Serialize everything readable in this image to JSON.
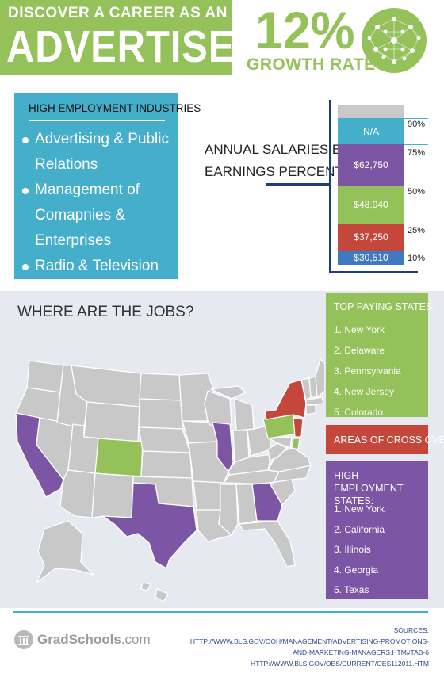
{
  "header": {
    "title_small": "DISCOVER A CAREER AS AN",
    "title_big": "ADVERTISER",
    "growth_value": "12%",
    "growth_label": "GROWTH RATE",
    "accent_color": "#94c159"
  },
  "industries": {
    "title": "HIGH EMPLOYMENT INDUSTRIES",
    "items": [
      "Advertising & Public Relations",
      "Management of Comapnies & Enterprises",
      "Radio & Television Broadcasting"
    ],
    "color": "#45aecb"
  },
  "salary": {
    "title_line1": "ANNUAL SALARIES BY",
    "title_line2": "EARNINGS PERCENTILE",
    "bars": [
      {
        "label": "N/A",
        "percentile": "90%",
        "color": "#45aecb"
      },
      {
        "label": "$62,750",
        "percentile": "75%",
        "color": "#7c56a4"
      },
      {
        "label": "$48,040",
        "percentile": "50%",
        "color": "#94c159"
      },
      {
        "label": "$37,250",
        "percentile": "25%",
        "color": "#c5463b"
      },
      {
        "label": "$30,510",
        "percentile": "10%",
        "color": "#3f7ac0"
      }
    ]
  },
  "jobs": {
    "title": "WHERE ARE THE JOBS?",
    "top_paying": {
      "title": "TOP PAYING STATES:",
      "states": [
        "1. New York",
        "2. Delaware",
        "3. Pennsylvania",
        "4. New Jersey",
        "5. Colorado"
      ]
    },
    "cross_over": "AREAS OF CROSS OVER",
    "high_employment": {
      "title": "HIGH EMPLOYMENT STATES:",
      "states": [
        "1. New York",
        "2. California",
        "3. Illinois",
        "4. Georgia",
        "5. Texas"
      ]
    },
    "map_colors": {
      "default": "#c8c8c8",
      "top_paying": "#94c159",
      "cross_over": "#c5463b",
      "high_employment": "#7c56a4"
    }
  },
  "footer": {
    "logo_brand": "GradSchools",
    "logo_suffix": ".com",
    "sources_title": "SOURCES:",
    "source_lines": [
      "HTTP://WWW.BLS.GOV/OOH/MANAGEMENT/ADVERTISING-PROMOTIONS-",
      "AND-MARKETING-MANAGERS.HTM#TAB-6",
      "HTTP://WWW.BLS.GOV/OES/CURRENT/OES112011.HTM"
    ]
  }
}
